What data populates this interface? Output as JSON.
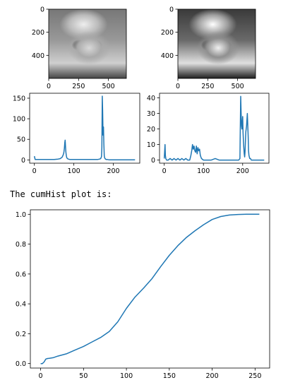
{
  "caption": "The cumHist plot is:",
  "chart_data": [
    {
      "type": "image",
      "name": "original-image",
      "xticks": [
        0,
        250,
        500
      ],
      "yticks": [
        0,
        200,
        400
      ],
      "xlim": [
        0,
        650
      ],
      "ylim": [
        600,
        0
      ]
    },
    {
      "type": "image",
      "name": "equalized-image",
      "xticks": [
        0,
        250,
        500
      ],
      "yticks": [
        0,
        200,
        400
      ],
      "xlim": [
        0,
        650
      ],
      "ylim": [
        600,
        0
      ]
    },
    {
      "type": "line",
      "name": "original-histogram",
      "xlim": [
        -12,
        267
      ],
      "ylim": [
        -8,
        162
      ],
      "xticks": [
        0,
        100,
        200
      ],
      "yticks": [
        0,
        50,
        100,
        150
      ],
      "color": "#1f77b4",
      "x": [
        0,
        2,
        4,
        10,
        20,
        30,
        40,
        50,
        60,
        65,
        70,
        72,
        74,
        75,
        76,
        77,
        78,
        79,
        80,
        81,
        82,
        84,
        86,
        90,
        100,
        110,
        120,
        130,
        140,
        150,
        160,
        165,
        168,
        170,
        171,
        172,
        173,
        174,
        175,
        176,
        177,
        178,
        180,
        182,
        185,
        190,
        200,
        220,
        240,
        255
      ],
      "y": [
        9,
        1,
        1,
        1,
        1,
        1,
        1,
        1,
        2,
        3,
        6,
        10,
        15,
        20,
        28,
        42,
        48,
        30,
        18,
        10,
        5,
        3,
        2,
        1,
        1,
        1,
        1,
        1,
        1,
        1,
        1,
        2,
        3,
        8,
        30,
        155,
        120,
        60,
        80,
        40,
        10,
        5,
        2,
        1,
        1,
        0,
        0,
        0,
        0,
        0
      ]
    },
    {
      "type": "line",
      "name": "equalized-histogram",
      "xlim": [
        -12,
        267
      ],
      "ylim": [
        -2,
        43
      ],
      "xticks": [
        0,
        100,
        200
      ],
      "yticks": [
        0,
        10,
        20,
        30,
        40
      ],
      "color": "#1f77b4",
      "x": [
        0,
        1,
        2,
        3,
        4,
        6,
        10,
        15,
        20,
        25,
        30,
        35,
        40,
        45,
        50,
        55,
        60,
        65,
        68,
        70,
        72,
        74,
        76,
        78,
        80,
        82,
        84,
        86,
        88,
        90,
        92,
        95,
        100,
        110,
        120,
        130,
        140,
        150,
        160,
        170,
        180,
        190,
        193,
        194,
        195,
        196,
        197,
        198,
        199,
        200,
        201,
        202,
        203,
        204,
        205,
        206,
        208,
        210,
        212,
        214,
        215,
        216,
        218,
        220,
        222,
        224,
        230,
        240,
        255
      ],
      "y": [
        1,
        5,
        10,
        3,
        1,
        0,
        0,
        1,
        0,
        1,
        0,
        1,
        0,
        1,
        0,
        1,
        0,
        0,
        3,
        6,
        10,
        7,
        9,
        6,
        5,
        9,
        4,
        8,
        6,
        7,
        3,
        1,
        0,
        0,
        0,
        1,
        0,
        0,
        0,
        0,
        0,
        0,
        1,
        20,
        41,
        30,
        22,
        20,
        24,
        28,
        18,
        12,
        8,
        4,
        2,
        5,
        18,
        22,
        30,
        15,
        6,
        3,
        1,
        1,
        0,
        0,
        0,
        0,
        0
      ]
    },
    {
      "type": "line",
      "name": "cumulative-histogram",
      "xlim": [
        -12,
        267
      ],
      "ylim": [
        -0.03,
        1.03
      ],
      "xticks": [
        0,
        50,
        100,
        150,
        200,
        250
      ],
      "yticks": [
        0.0,
        0.2,
        0.4,
        0.6,
        0.8,
        1.0
      ],
      "ytick_labels": [
        "0.0",
        "0.2",
        "0.4",
        "0.6",
        "0.8",
        "1.0"
      ],
      "color": "#1f77b4",
      "x": [
        0,
        2,
        4,
        6,
        8,
        10,
        15,
        20,
        30,
        40,
        50,
        60,
        70,
        80,
        90,
        100,
        110,
        120,
        130,
        140,
        150,
        160,
        170,
        180,
        190,
        200,
        210,
        220,
        230,
        240,
        255
      ],
      "y": [
        0.0,
        0.0,
        0.01,
        0.03,
        0.034,
        0.035,
        0.04,
        0.05,
        0.065,
        0.09,
        0.115,
        0.145,
        0.175,
        0.215,
        0.28,
        0.37,
        0.445,
        0.505,
        0.57,
        0.65,
        0.725,
        0.79,
        0.845,
        0.89,
        0.93,
        0.965,
        0.985,
        0.995,
        0.999,
        1.0,
        1.0
      ]
    }
  ]
}
